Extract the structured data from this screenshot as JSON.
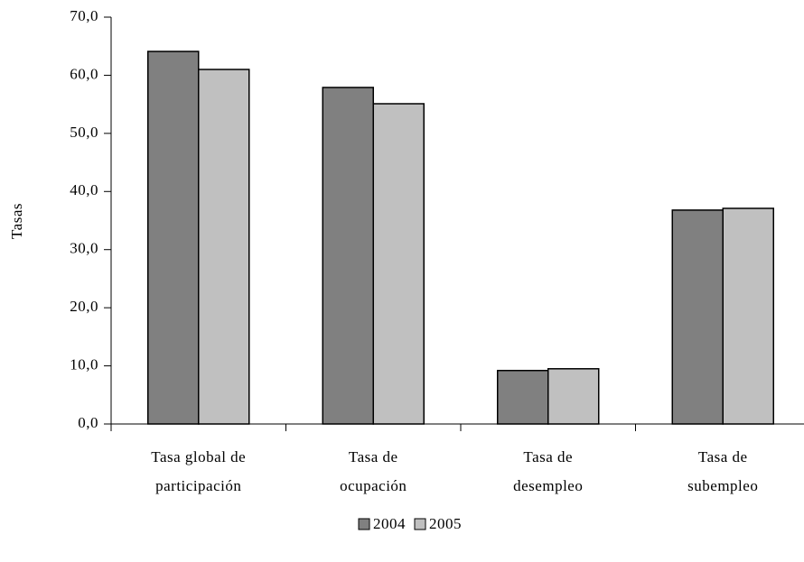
{
  "chart_data": {
    "type": "bar",
    "y_label": "Tasas",
    "categories": [
      [
        "Tasa global de",
        "participación"
      ],
      [
        "Tasa de",
        "ocupación"
      ],
      [
        "Tasa de",
        "desempleo"
      ],
      [
        "Tasa de",
        "subempleo"
      ]
    ],
    "series": [
      {
        "name": "2004",
        "color": "#808080",
        "values": [
          64.1,
          57.9,
          9.2,
          36.8
        ]
      },
      {
        "name": "2005",
        "color": "#c0c0c0",
        "values": [
          61.0,
          55.1,
          9.5,
          37.1
        ]
      }
    ],
    "ylim": [
      0,
      70
    ],
    "yticks": [
      {
        "value": 0,
        "label": "0,0"
      },
      {
        "value": 10,
        "label": "10,0"
      },
      {
        "value": 20,
        "label": "20,0"
      },
      {
        "value": 30,
        "label": "30,0"
      },
      {
        "value": 40,
        "label": "40,0"
      },
      {
        "value": 50,
        "label": "50,0"
      },
      {
        "value": 60,
        "label": "60,0"
      },
      {
        "value": 70,
        "label": "70,0"
      }
    ],
    "legend": "bottom",
    "grid": false
  }
}
